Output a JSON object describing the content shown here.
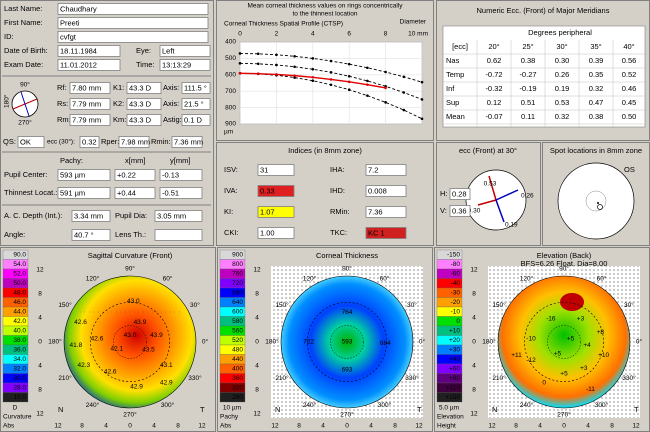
{
  "patient": [
    [
      "Last Name:",
      "Chaudhary"
    ],
    [
      "First Name:",
      "Preeti"
    ],
    [
      "ID:",
      "cvfgt"
    ],
    [
      "Date of Birth:",
      "18.11.1984",
      "Eye:",
      "Left"
    ],
    [
      "Exam Date:",
      "11.01.2012",
      "Time:",
      "13:13:29"
    ]
  ],
  "keratometry": {
    "rows": [
      [
        "Rf:",
        "7.80 mm",
        "K1:",
        "43.3 D",
        "Axis:",
        "111.5 °"
      ],
      [
        "Rs:",
        "7.79 mm",
        "K2:",
        "43.3 D",
        "Axis:",
        "21.5 °"
      ],
      [
        "Rm:",
        "7.79 mm",
        "Km:",
        "43.3 D",
        "Astig:",
        "0.1 D"
      ]
    ],
    "row_colors": [
      "#000000",
      "#c00000",
      "#000000"
    ],
    "quality": [
      "QS:",
      "OK",
      "ecc (30°):",
      "0.32",
      "Rper:",
      "7.98 mm",
      "Rmin:",
      "7.36 mm"
    ]
  },
  "pachy": {
    "header": [
      "Pachy:",
      "x[mm]",
      "y[mm]"
    ],
    "rows": [
      [
        "Pupil Center:",
        "593 µm",
        "+0.22",
        "-0.13"
      ],
      [
        "Thinnest Locat.:",
        "591 µm",
        "+0.44",
        "-0.51"
      ]
    ],
    "depth": [
      "A. C. Depth (Int.):",
      "3.34 mm",
      "Pupil Dia:",
      "3.05 mm"
    ],
    "angle": [
      "Angle:",
      "40.7 °",
      "Lens Th.:"
    ]
  },
  "ctsp": {
    "type": "line",
    "title": [
      "Mean corneal thickness values on rings concentrically",
      "to the thinnest location"
    ],
    "subtitle": "Corneal Thickness Spatial Profile (CTSP)",
    "x_label": "Diameter",
    "y_label": "µm",
    "x": [
      0,
      1,
      2,
      3,
      4,
      5,
      6,
      7,
      8,
      9,
      10
    ],
    "xlim": [
      0,
      10
    ],
    "xticks": [
      0,
      2,
      4,
      6,
      8,
      {
        "value": 10,
        "label": "10 mm"
      }
    ],
    "ylim": [
      400,
      900
    ],
    "yticks": [
      400,
      500,
      600,
      700,
      800,
      900
    ],
    "y_inverted": true,
    "grid": true,
    "series": [
      {
        "color": "#000000",
        "dashed": true,
        "values": [
          470,
          472,
          478,
          487,
          500,
          516,
          535,
          557,
          583,
          612,
          645
        ]
      },
      {
        "color": "#000000",
        "dashed": true,
        "values": [
          530,
          533,
          540,
          551,
          566,
          585,
          609,
          637,
          670,
          708,
          750
        ]
      },
      {
        "color": "#000000",
        "dashed": true,
        "values": [
          590,
          594,
          603,
          617,
          636,
          661,
          691,
          727,
          768,
          815,
          868
        ]
      },
      {
        "color": "#e00000",
        "dashed": false,
        "values": [
          591,
          593,
          598,
          605,
          615,
          628,
          643,
          660,
          680,
          null,
          null
        ]
      }
    ]
  },
  "ecc_table": {
    "title": "Numeric Ecc. (Front) of Major Meridians",
    "group": "Degrees peripheral",
    "header": [
      "[ecc]",
      "20°",
      "25°",
      "30°",
      "35°",
      "40°"
    ],
    "rows": [
      [
        "Nas",
        "0.62",
        "0.38",
        "0.30",
        "0.39",
        "0.56"
      ],
      [
        "Temp",
        "-0.72",
        "-0.27",
        "0.26",
        "0.35",
        "0.52"
      ],
      [
        "Inf",
        "-0.32",
        "-0.19",
        "0.19",
        "0.32",
        "0.46"
      ],
      [
        "Sup",
        "0.12",
        "0.51",
        "0.53",
        "0.47",
        "0.45"
      ],
      [
        "Mean",
        "-0.07",
        "0.11",
        "0.32",
        "0.38",
        "0.50"
      ]
    ],
    "row_colors": [
      "#c00000",
      "#c00000",
      "#000000",
      "#000000",
      "#000000"
    ]
  },
  "indices": {
    "title": "Indices (in 8mm zone)",
    "left": [
      {
        "label": "ISV:",
        "value": "31",
        "bg": "#ffffff"
      },
      {
        "label": "IVA:",
        "value": "0.33",
        "bg": "#e02020"
      },
      {
        "label": "KI:",
        "value": "1.07",
        "bg": "#ffff00"
      },
      {
        "label": "CKI:",
        "value": "1.00",
        "bg": "#ffffff"
      }
    ],
    "right": [
      {
        "label": "IHA:",
        "value": "7.2",
        "bg": "#ffffff"
      },
      {
        "label": "IHD:",
        "value": "0.008",
        "bg": "#ffffff"
      },
      {
        "label": "RMin:",
        "value": "7.36",
        "bg": "#ffffff"
      },
      {
        "label": "TKC:",
        "value": "KC 1",
        "bg": "#d02020"
      }
    ]
  },
  "ecc30": {
    "title": "ecc (Front) at 30°",
    "h": [
      "H:",
      "0.28"
    ],
    "v": [
      "V:",
      "0.36"
    ],
    "top": "0.53",
    "right": "0.26",
    "left": "0.30",
    "bottom": "0.19"
  },
  "spots": {
    "title": "Spot locations in 8mm zone",
    "eye": "OS"
  },
  "degrees": [
    "90°",
    "60°",
    "30°",
    "0°",
    "330°",
    "300°",
    "270°",
    "240°",
    "210°",
    "180°",
    "150°",
    "120°"
  ],
  "map_ticks": [
    "12",
    "8",
    "4",
    "0",
    "4",
    "8",
    "12"
  ],
  "map_sides": [
    "N",
    "T"
  ],
  "maps": [
    {
      "title": [
        "Sagittal Curvature (Front)"
      ],
      "unit": "D",
      "kind": "Curvature",
      "mode": "Abs",
      "scale": [
        "90.0",
        "54.0",
        "52.0",
        "50.0",
        "48.0",
        "46.0",
        "44.0",
        "42.0",
        "40.0",
        "38.0",
        "36.0",
        "34.0",
        "32.0",
        "30.0",
        "28.0",
        "10.0"
      ],
      "scale_colors": [
        "#d8d8d8",
        "#ff80ff",
        "#ff00ff",
        "#c000c0",
        "#ff0000",
        "#ff6000",
        "#ffa000",
        "#ffff00",
        "#c0ff00",
        "#00e000",
        "#00c080",
        "#00ffff",
        "#0080ff",
        "#0000ff",
        "#8000ff",
        "#202020"
      ],
      "numbers": [
        "42.6",
        "43.0",
        "42.6",
        "41.8",
        "42.1",
        "43.9",
        "42.3",
        "43.1",
        "42.6",
        "43.9",
        "42.9",
        "42.9",
        "43.5",
        "43.0"
      ]
    },
    {
      "title": [
        "Corneal Thickness"
      ],
      "unit": "10 µm",
      "kind": "Pachy",
      "mode": "Abs",
      "scale": [
        "900",
        "800",
        "760",
        "720",
        "680",
        "640",
        "600",
        "580",
        "560",
        "520",
        "480",
        "440",
        "400",
        "360",
        "320",
        "280"
      ],
      "scale_colors": [
        "#d8d8d8",
        "#ff80ff",
        "#c000c0",
        "#8000ff",
        "#0000ff",
        "#0080ff",
        "#00ffff",
        "#00c080",
        "#00e000",
        "#c0ff00",
        "#ffff00",
        "#ffa000",
        "#ff6000",
        "#ff0000",
        "#800000",
        "#202020"
      ],
      "numbers": [
        "764",
        "722",
        "593",
        "684",
        "693"
      ]
    },
    {
      "title": [
        "Elevation (Back)",
        "BFS=6.26 Float, Dia=8.00"
      ],
      "unit": "5.0 µm",
      "kind": "Elevation",
      "mode": "Height",
      "scale": [
        "-150",
        "-80",
        "-60",
        "-40",
        "-30",
        "-20",
        "-10",
        "0",
        "+10",
        "+20",
        "+30",
        "+40",
        "+60",
        "+80",
        "+110",
        "+150"
      ],
      "scale_colors": [
        "#d8d8d8",
        "#ff80ff",
        "#c000c0",
        "#ff0000",
        "#ff6000",
        "#ffa000",
        "#ffff00",
        "#00e000",
        "#00c080",
        "#00ffff",
        "#0080ff",
        "#0000ff",
        "#8000ff",
        "#600080",
        "#400040",
        "#202020"
      ],
      "numbers": [
        "-16",
        "+3",
        "-10",
        "-12",
        "+8",
        "+5",
        "+4",
        "+10",
        "+5",
        "+3",
        "+5",
        "0",
        "-11",
        "+11"
      ]
    }
  ]
}
